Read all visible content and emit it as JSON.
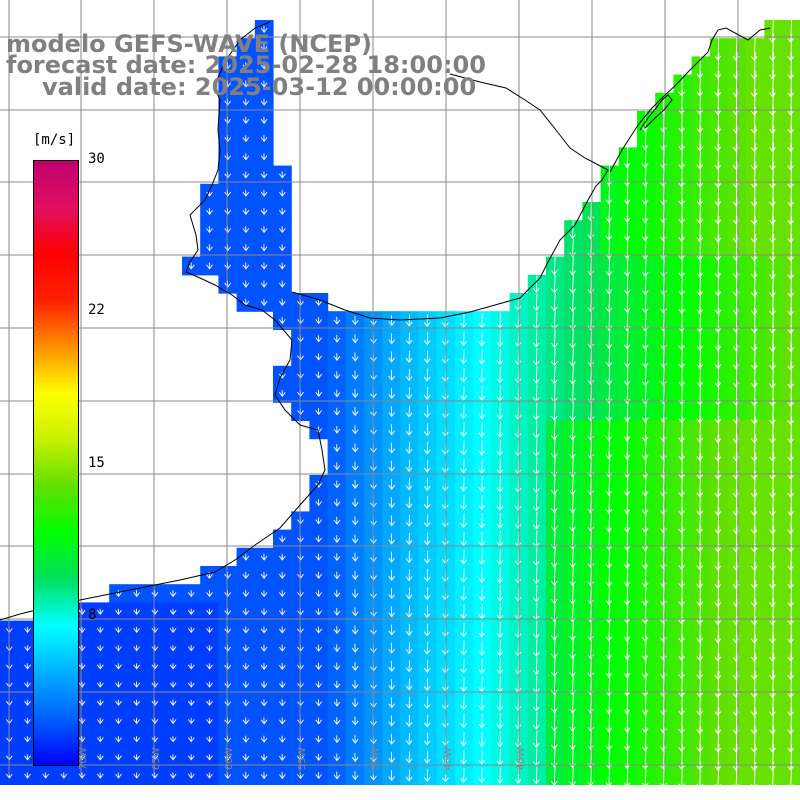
{
  "title": {
    "line1": "modelo GEFS-WAVE (NCEP)",
    "line2": "forecast date: 2025-02-28 18:00:00",
    "line3": "valid date: 2025-03-12 00:00:00"
  },
  "colorbar": {
    "unit": "[m/s]",
    "ticks": [
      "30",
      "22",
      "15",
      "8"
    ],
    "tick_values": [
      30,
      22,
      15,
      8
    ],
    "range": [
      0,
      30
    ],
    "stops": [
      "#0000ff",
      "#0060ff",
      "#00b0ff",
      "#00ffff",
      "#00e060",
      "#00ff00",
      "#60e000",
      "#c8f000",
      "#ffff00",
      "#ff9000",
      "#ff2000",
      "#ff0000",
      "#e01060",
      "#c00070"
    ]
  },
  "map": {
    "longitude_labels": [
      "70W",
      "65W",
      "60W",
      "55W",
      "50W",
      "45W",
      "40W"
    ],
    "colors": {
      "land": "#ffffff",
      "grid": "#888888",
      "coast": "#000000",
      "arrow": "#ffffff"
    },
    "field_description_speed_ms": {
      "south_west_min": 2,
      "east_max": 13
    }
  }
}
